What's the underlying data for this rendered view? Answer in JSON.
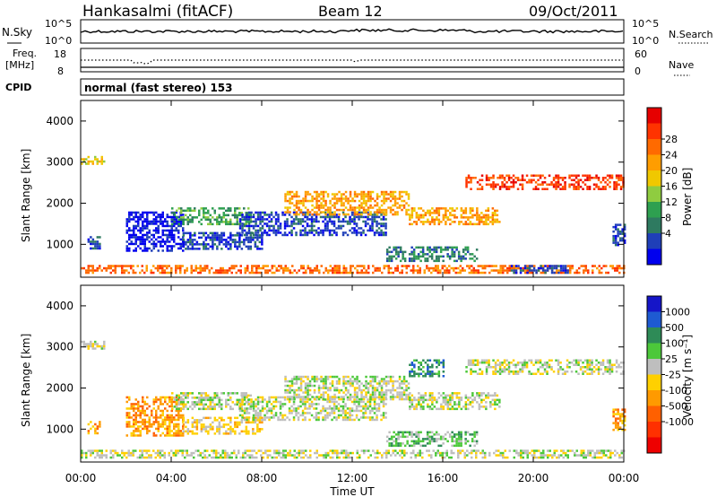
{
  "header": {
    "station": "Hankasalmi (fitACF)",
    "beam": "Beam 12",
    "date": "09/Oct/2011"
  },
  "noise_panel": {
    "left_label": "N.Sky",
    "right_label": "N.Search",
    "left_ticks": [
      "10^5",
      "10^0"
    ],
    "right_ticks": [
      "10^5",
      "10^0"
    ]
  },
  "freq_panel": {
    "left_label_1": "Freq.",
    "left_label_2": "[MHz]",
    "right_label": "Nave",
    "left_ticks": [
      "18",
      "8"
    ],
    "right_ticks": [
      "60",
      "0"
    ]
  },
  "cpid": {
    "label": "CPID",
    "value": "normal (fast stereo) 153"
  },
  "power_colorbar": {
    "title": "Power [dB]",
    "ticks": [
      "28",
      "24",
      "20",
      "16",
      "12",
      "8",
      "4"
    ],
    "colors": [
      "#e60000",
      "#ff3300",
      "#ff6a00",
      "#ff9d00",
      "#f0c800",
      "#8fcc40",
      "#2ea050",
      "#2e7a60",
      "#1f3fb8",
      "#0000ee"
    ]
  },
  "velocity_colorbar": {
    "title": "Velocity [m s⁻¹]",
    "ticks": [
      "1000",
      "500",
      "100",
      "25",
      "-25",
      "-100",
      "-500",
      "-1000"
    ],
    "colors": [
      "#1515c8",
      "#1e5ad2",
      "#2e8b57",
      "#4cc83a",
      "#bebebe",
      "#ffd000",
      "#ff9a00",
      "#ff6000",
      "#ff3000",
      "#ee0000"
    ]
  },
  "chart_data": [
    {
      "type": "heatmap",
      "name": "power",
      "ylabel": "Slant Range [km]",
      "ylim": [
        200,
        4500
      ],
      "yticks": [
        "4000",
        "3000",
        "2000",
        "1000"
      ],
      "xlim_hours": [
        0,
        24
      ],
      "xtick_labels": [
        "00:00",
        "04:00",
        "08:00",
        "12:00",
        "16:00",
        "20:00",
        "00:00"
      ],
      "bands": [
        {
          "from_h": 0.0,
          "to_h": 24.0,
          "r": [
            300,
            500
          ],
          "level": 7
        },
        {
          "from_h": 0.0,
          "to_h": 1.0,
          "r": [
            2950,
            3150
          ],
          "level": 5
        },
        {
          "from_h": 0.3,
          "to_h": 0.8,
          "r": [
            900,
            1200
          ],
          "level": 1
        },
        {
          "from_h": 2.0,
          "to_h": 4.5,
          "r": [
            850,
            1800
          ],
          "level": 0
        },
        {
          "from_h": 4.5,
          "to_h": 8.0,
          "r": [
            900,
            1300
          ],
          "level": 1
        },
        {
          "from_h": 4.0,
          "to_h": 7.5,
          "r": [
            1500,
            1900
          ],
          "level": 3
        },
        {
          "from_h": 7.0,
          "to_h": 13.5,
          "r": [
            1200,
            1800
          ],
          "level": 1
        },
        {
          "from_h": 9.0,
          "to_h": 14.5,
          "r": [
            1700,
            2300
          ],
          "level": 6
        },
        {
          "from_h": 13.5,
          "to_h": 17.5,
          "r": [
            600,
            950
          ],
          "level": 2
        },
        {
          "from_h": 14.5,
          "to_h": 18.5,
          "r": [
            1500,
            1900
          ],
          "level": 6
        },
        {
          "from_h": 17.0,
          "to_h": 24.0,
          "r": [
            2350,
            2700
          ],
          "level": 8
        },
        {
          "from_h": 19.0,
          "to_h": 21.5,
          "r": [
            300,
            500
          ],
          "level": 1
        },
        {
          "from_h": 23.5,
          "to_h": 24.0,
          "r": [
            1000,
            1500
          ],
          "level": 1
        }
      ]
    },
    {
      "type": "heatmap",
      "name": "velocity",
      "ylabel": "Slant Range [km]",
      "xlabel": "Time UT",
      "ylim": [
        200,
        4500
      ],
      "yticks": [
        "4000",
        "3000",
        "2000",
        "1000"
      ],
      "xlim_hours": [
        0,
        24
      ],
      "xtick_labels": [
        "00:00",
        "04:00",
        "08:00",
        "12:00",
        "16:00",
        "20:00",
        "00:00"
      ],
      "bands": [
        {
          "from_h": 0.0,
          "to_h": 24.0,
          "r": [
            300,
            500
          ],
          "level": 4
        },
        {
          "from_h": 0.0,
          "to_h": 1.0,
          "r": [
            2950,
            3150
          ],
          "level": 4
        },
        {
          "from_h": 0.3,
          "to_h": 0.8,
          "r": [
            900,
            1200
          ],
          "level": 6
        },
        {
          "from_h": 2.0,
          "to_h": 4.5,
          "r": [
            850,
            1800
          ],
          "level": 6
        },
        {
          "from_h": 4.5,
          "to_h": 8.0,
          "r": [
            900,
            1300
          ],
          "level": 5
        },
        {
          "from_h": 4.0,
          "to_h": 7.5,
          "r": [
            1500,
            1900
          ],
          "level": 4
        },
        {
          "from_h": 7.0,
          "to_h": 13.5,
          "r": [
            1200,
            1800
          ],
          "level": 4
        },
        {
          "from_h": 9.0,
          "to_h": 14.5,
          "r": [
            1700,
            2300
          ],
          "level": 4
        },
        {
          "from_h": 13.5,
          "to_h": 17.5,
          "r": [
            600,
            950
          ],
          "level": 3
        },
        {
          "from_h": 14.5,
          "to_h": 18.5,
          "r": [
            1500,
            1900
          ],
          "level": 4
        },
        {
          "from_h": 17.0,
          "to_h": 24.0,
          "r": [
            2350,
            2700
          ],
          "level": 4
        },
        {
          "from_h": 14.5,
          "to_h": 16.0,
          "r": [
            2300,
            2700
          ],
          "level": 2
        },
        {
          "from_h": 23.5,
          "to_h": 24.0,
          "r": [
            1000,
            1500
          ],
          "level": 6
        }
      ]
    }
  ]
}
